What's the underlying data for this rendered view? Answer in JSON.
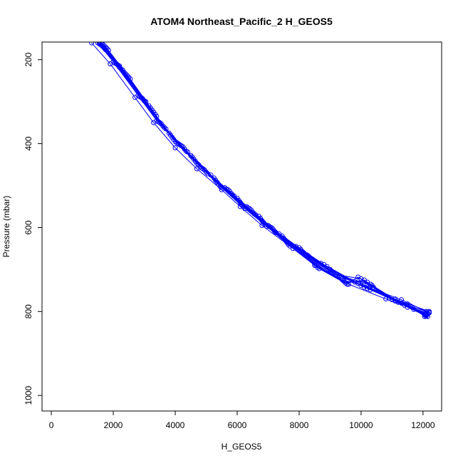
{
  "chart_data": {
    "type": "line",
    "title": "ATOM4 Northeast_Pacific_2 H_GEOS5",
    "xlabel": "H_GEOS5",
    "ylabel": "Pressure (mbar)",
    "xlim": [
      -300,
      12600
    ],
    "ylim": [
      1037,
      158
    ],
    "y_reversed": true,
    "xticks": [
      0,
      2000,
      4000,
      6000,
      8000,
      10000,
      12000
    ],
    "yticks": [
      200,
      400,
      600,
      800,
      1000
    ],
    "grid": false,
    "legend": "none",
    "series_color": "#0000ff",
    "marker": "open-circle",
    "series": [
      {
        "values": [
          [
            1300,
            160
          ],
          [
            1900,
            210
          ],
          [
            2700,
            290
          ],
          [
            3300,
            350
          ],
          [
            4000,
            410
          ],
          [
            4700,
            460
          ],
          [
            5500,
            510
          ],
          [
            6100,
            550
          ],
          [
            6800,
            595
          ],
          [
            7800,
            650
          ],
          [
            8500,
            690
          ],
          [
            9600,
            735
          ],
          [
            10800,
            770
          ],
          [
            12100,
            805
          ]
        ]
      },
      {
        "values": [
          [
            1500,
            160
          ],
          [
            2000,
            205
          ],
          [
            2800,
            285
          ],
          [
            3400,
            345
          ],
          [
            4100,
            400
          ],
          [
            4800,
            455
          ],
          [
            5600,
            505
          ],
          [
            6300,
            550
          ],
          [
            7000,
            595
          ],
          [
            7900,
            645
          ],
          [
            8700,
            685
          ],
          [
            9800,
            730
          ],
          [
            11100,
            770
          ],
          [
            12200,
            800
          ]
        ]
      },
      {
        "values": [
          [
            1550,
            162
          ],
          [
            2050,
            208
          ],
          [
            2850,
            288
          ],
          [
            3450,
            348
          ],
          [
            4150,
            403
          ],
          [
            4850,
            458
          ],
          [
            5650,
            508
          ],
          [
            6350,
            553
          ],
          [
            7050,
            598
          ],
          [
            8000,
            648
          ],
          [
            8800,
            688
          ],
          [
            9900,
            733
          ],
          [
            11300,
            772
          ],
          [
            12200,
            803
          ]
        ]
      },
      {
        "values": [
          [
            1600,
            165
          ],
          [
            2100,
            210
          ],
          [
            2900,
            290
          ],
          [
            3500,
            350
          ],
          [
            4200,
            405
          ],
          [
            4900,
            460
          ],
          [
            5700,
            510
          ],
          [
            6400,
            555
          ],
          [
            7100,
            600
          ],
          [
            8050,
            652
          ],
          [
            8900,
            693
          ],
          [
            10000,
            738
          ],
          [
            11500,
            782
          ],
          [
            12050,
            812
          ]
        ]
      },
      {
        "values": [
          [
            1650,
            168
          ],
          [
            2150,
            213
          ],
          [
            2950,
            293
          ],
          [
            3550,
            353
          ],
          [
            4250,
            408
          ],
          [
            4950,
            463
          ],
          [
            5750,
            513
          ],
          [
            6450,
            558
          ],
          [
            7150,
            603
          ],
          [
            8100,
            657
          ],
          [
            9000,
            700
          ],
          [
            10100,
            742
          ],
          [
            11600,
            787
          ],
          [
            12100,
            810
          ]
        ]
      },
      {
        "values": [
          [
            1700,
            172
          ],
          [
            2200,
            218
          ],
          [
            3000,
            298
          ],
          [
            3600,
            358
          ],
          [
            4300,
            413
          ],
          [
            5000,
            468
          ],
          [
            5800,
            518
          ],
          [
            6500,
            563
          ],
          [
            7200,
            608
          ],
          [
            8150,
            660
          ],
          [
            9050,
            705
          ],
          [
            10200,
            745
          ],
          [
            11650,
            790
          ],
          [
            12150,
            812
          ]
        ]
      },
      {
        "values": [
          [
            1750,
            176
          ],
          [
            2250,
            222
          ],
          [
            3050,
            302
          ],
          [
            3650,
            362
          ],
          [
            4350,
            418
          ],
          [
            5050,
            472
          ],
          [
            5850,
            522
          ],
          [
            6550,
            567
          ],
          [
            7250,
            612
          ],
          [
            8250,
            665
          ],
          [
            9100,
            708
          ],
          [
            10300,
            748
          ],
          [
            11700,
            795
          ],
          [
            12100,
            808
          ]
        ]
      },
      {
        "values": [
          [
            1600,
            160
          ],
          [
            2300,
            225
          ],
          [
            3150,
            310
          ],
          [
            3800,
            375
          ],
          [
            4500,
            428
          ],
          [
            5250,
            482
          ],
          [
            6000,
            530
          ],
          [
            6700,
            573
          ],
          [
            7450,
            620
          ],
          [
            8400,
            675
          ],
          [
            9300,
            715
          ],
          [
            10300,
            735
          ],
          [
            11500,
            790
          ],
          [
            12050,
            806
          ]
        ]
      },
      {
        "values": [
          [
            1650,
            163
          ],
          [
            2350,
            230
          ],
          [
            3200,
            315
          ],
          [
            3850,
            380
          ],
          [
            4550,
            432
          ],
          [
            5300,
            487
          ],
          [
            6050,
            535
          ],
          [
            6750,
            578
          ],
          [
            7500,
            625
          ],
          [
            8450,
            680
          ],
          [
            9350,
            720
          ],
          [
            10350,
            738
          ],
          [
            11400,
            785
          ],
          [
            12150,
            804
          ]
        ]
      },
      {
        "values": [
          [
            1700,
            166
          ],
          [
            2400,
            234
          ],
          [
            3250,
            320
          ],
          [
            3900,
            385
          ],
          [
            4600,
            437
          ],
          [
            5350,
            492
          ],
          [
            6100,
            540
          ],
          [
            6800,
            583
          ],
          [
            7550,
            630
          ],
          [
            8500,
            685
          ],
          [
            9400,
            725
          ],
          [
            10400,
            742
          ],
          [
            11300,
            780
          ],
          [
            12100,
            800
          ]
        ]
      },
      {
        "values": [
          [
            1750,
            170
          ],
          [
            2450,
            238
          ],
          [
            3300,
            325
          ],
          [
            3950,
            390
          ],
          [
            4650,
            442
          ],
          [
            5400,
            497
          ],
          [
            6150,
            545
          ],
          [
            6850,
            588
          ],
          [
            7600,
            635
          ],
          [
            8550,
            690
          ],
          [
            9450,
            728
          ],
          [
            10200,
            730
          ],
          [
            11200,
            778
          ],
          [
            12200,
            802
          ]
        ]
      },
      {
        "values": [
          [
            1800,
            174
          ],
          [
            2500,
            242
          ],
          [
            3350,
            330
          ],
          [
            4000,
            395
          ],
          [
            4700,
            447
          ],
          [
            5450,
            502
          ],
          [
            6200,
            550
          ],
          [
            6900,
            593
          ],
          [
            7650,
            640
          ],
          [
            8600,
            695
          ],
          [
            9500,
            732
          ],
          [
            10100,
            725
          ],
          [
            11100,
            775
          ],
          [
            12150,
            806
          ]
        ]
      },
      {
        "values": [
          [
            1550,
            160
          ],
          [
            2200,
            215
          ],
          [
            3050,
            300
          ],
          [
            3700,
            365
          ],
          [
            4400,
            420
          ],
          [
            5150,
            475
          ],
          [
            5900,
            525
          ],
          [
            6600,
            570
          ],
          [
            7350,
            615
          ],
          [
            8300,
            668
          ],
          [
            9200,
            712
          ],
          [
            10000,
            722
          ],
          [
            11000,
            772
          ],
          [
            12050,
            808
          ]
        ]
      },
      {
        "values": [
          [
            1850,
            178
          ],
          [
            2550,
            246
          ],
          [
            3400,
            335
          ],
          [
            4050,
            398
          ],
          [
            4750,
            450
          ],
          [
            5500,
            505
          ],
          [
            6250,
            555
          ],
          [
            6950,
            597
          ],
          [
            7700,
            644
          ],
          [
            8650,
            698
          ],
          [
            9550,
            735
          ],
          [
            9900,
            718
          ],
          [
            10900,
            768
          ],
          [
            12100,
            811
          ]
        ]
      }
    ]
  }
}
